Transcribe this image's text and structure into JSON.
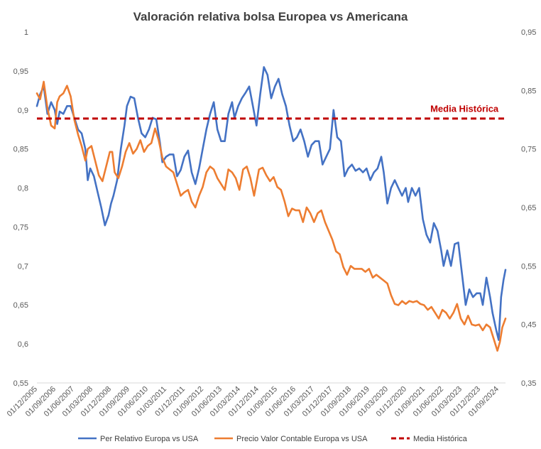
{
  "chart_data": {
    "type": "line",
    "title": "Valoración relativa bolsa Europea vs Americana",
    "x_tick_labels": [
      "01/12/2005",
      "01/09/2006",
      "01/06/2007",
      "01/03/2008",
      "01/12/2008",
      "01/09/2009",
      "01/06/2010",
      "01/03/2011",
      "01/12/2011",
      "01/09/2012",
      "01/06/2013",
      "01/03/2014",
      "01/12/2014",
      "01/09/2015",
      "01/06/2016",
      "01/03/2017",
      "01/12/2017",
      "01/09/2018",
      "01/06/2019",
      "01/03/2020",
      "01/12/2020",
      "01/09/2021",
      "01/06/2022",
      "01/03/2023",
      "01/12/2023",
      "01/09/2024"
    ],
    "x_range": [
      2005.92,
      2025.08
    ],
    "y_left": {
      "min": 0.55,
      "max": 1.0,
      "ticks": [
        "0,55",
        "0,6",
        "0,65",
        "0,7",
        "0,75",
        "0,8",
        "0,85",
        "0,9",
        "0,95",
        "1"
      ]
    },
    "y_right": {
      "min": 0.35,
      "max": 0.95,
      "ticks": [
        "0,35",
        "0,45",
        "0,55",
        "0,65",
        "0,75",
        "0,85",
        "0,95"
      ]
    },
    "series": [
      {
        "name": "Per Relativo Europa vs USA",
        "axis": "left",
        "color": "#4472c4",
        "points": [
          [
            2005.92,
            0.905
          ],
          [
            2006.05,
            0.92
          ],
          [
            2006.2,
            0.93
          ],
          [
            2006.35,
            0.895
          ],
          [
            2006.5,
            0.91
          ],
          [
            2006.65,
            0.9
          ],
          [
            2006.75,
            0.882
          ],
          [
            2006.85,
            0.898
          ],
          [
            2007.0,
            0.895
          ],
          [
            2007.15,
            0.905
          ],
          [
            2007.3,
            0.905
          ],
          [
            2007.45,
            0.89
          ],
          [
            2007.6,
            0.875
          ],
          [
            2007.75,
            0.87
          ],
          [
            2007.9,
            0.85
          ],
          [
            2008.0,
            0.81
          ],
          [
            2008.1,
            0.825
          ],
          [
            2008.25,
            0.815
          ],
          [
            2008.4,
            0.795
          ],
          [
            2008.55,
            0.775
          ],
          [
            2008.7,
            0.752
          ],
          [
            2008.85,
            0.765
          ],
          [
            2008.95,
            0.78
          ],
          [
            2009.05,
            0.79
          ],
          [
            2009.2,
            0.81
          ],
          [
            2009.35,
            0.85
          ],
          [
            2009.5,
            0.88
          ],
          [
            2009.6,
            0.905
          ],
          [
            2009.75,
            0.917
          ],
          [
            2009.9,
            0.915
          ],
          [
            2010.05,
            0.89
          ],
          [
            2010.2,
            0.87
          ],
          [
            2010.35,
            0.865
          ],
          [
            2010.5,
            0.875
          ],
          [
            2010.65,
            0.89
          ],
          [
            2010.8,
            0.888
          ],
          [
            2010.95,
            0.858
          ],
          [
            2011.05,
            0.833
          ],
          [
            2011.2,
            0.84
          ],
          [
            2011.35,
            0.843
          ],
          [
            2011.5,
            0.843
          ],
          [
            2011.65,
            0.815
          ],
          [
            2011.8,
            0.823
          ],
          [
            2011.95,
            0.84
          ],
          [
            2012.1,
            0.848
          ],
          [
            2012.25,
            0.82
          ],
          [
            2012.4,
            0.805
          ],
          [
            2012.55,
            0.825
          ],
          [
            2012.7,
            0.85
          ],
          [
            2012.85,
            0.875
          ],
          [
            2013.0,
            0.895
          ],
          [
            2013.15,
            0.91
          ],
          [
            2013.3,
            0.875
          ],
          [
            2013.45,
            0.86
          ],
          [
            2013.6,
            0.86
          ],
          [
            2013.75,
            0.895
          ],
          [
            2013.9,
            0.91
          ],
          [
            2014.0,
            0.89
          ],
          [
            2014.15,
            0.905
          ],
          [
            2014.3,
            0.915
          ],
          [
            2014.45,
            0.922
          ],
          [
            2014.6,
            0.93
          ],
          [
            2014.75,
            0.905
          ],
          [
            2014.9,
            0.88
          ],
          [
            2015.05,
            0.92
          ],
          [
            2015.2,
            0.955
          ],
          [
            2015.35,
            0.945
          ],
          [
            2015.5,
            0.915
          ],
          [
            2015.65,
            0.93
          ],
          [
            2015.8,
            0.94
          ],
          [
            2015.95,
            0.92
          ],
          [
            2016.1,
            0.905
          ],
          [
            2016.25,
            0.88
          ],
          [
            2016.4,
            0.86
          ],
          [
            2016.55,
            0.865
          ],
          [
            2016.7,
            0.875
          ],
          [
            2016.85,
            0.86
          ],
          [
            2017.0,
            0.84
          ],
          [
            2017.15,
            0.855
          ],
          [
            2017.3,
            0.86
          ],
          [
            2017.45,
            0.86
          ],
          [
            2017.6,
            0.83
          ],
          [
            2017.75,
            0.84
          ],
          [
            2017.9,
            0.85
          ],
          [
            2018.05,
            0.9
          ],
          [
            2018.2,
            0.865
          ],
          [
            2018.35,
            0.86
          ],
          [
            2018.5,
            0.815
          ],
          [
            2018.65,
            0.825
          ],
          [
            2018.8,
            0.83
          ],
          [
            2018.95,
            0.822
          ],
          [
            2019.1,
            0.825
          ],
          [
            2019.25,
            0.82
          ],
          [
            2019.4,
            0.825
          ],
          [
            2019.55,
            0.81
          ],
          [
            2019.7,
            0.82
          ],
          [
            2019.85,
            0.825
          ],
          [
            2020.0,
            0.84
          ],
          [
            2020.1,
            0.82
          ],
          [
            2020.25,
            0.78
          ],
          [
            2020.4,
            0.8
          ],
          [
            2020.55,
            0.81
          ],
          [
            2020.7,
            0.8
          ],
          [
            2020.85,
            0.79
          ],
          [
            2021.0,
            0.8
          ],
          [
            2021.1,
            0.782
          ],
          [
            2021.25,
            0.8
          ],
          [
            2021.4,
            0.79
          ],
          [
            2021.55,
            0.8
          ],
          [
            2021.7,
            0.76
          ],
          [
            2021.85,
            0.74
          ],
          [
            2022.0,
            0.73
          ],
          [
            2022.15,
            0.755
          ],
          [
            2022.3,
            0.745
          ],
          [
            2022.45,
            0.72
          ],
          [
            2022.55,
            0.7
          ],
          [
            2022.7,
            0.72
          ],
          [
            2022.85,
            0.7
          ],
          [
            2023.0,
            0.728
          ],
          [
            2023.15,
            0.73
          ],
          [
            2023.3,
            0.69
          ],
          [
            2023.45,
            0.65
          ],
          [
            2023.6,
            0.67
          ],
          [
            2023.75,
            0.66
          ],
          [
            2023.9,
            0.665
          ],
          [
            2024.05,
            0.665
          ],
          [
            2024.15,
            0.65
          ],
          [
            2024.3,
            0.685
          ],
          [
            2024.45,
            0.66
          ],
          [
            2024.55,
            0.64
          ],
          [
            2024.7,
            0.618
          ],
          [
            2024.8,
            0.605
          ],
          [
            2024.9,
            0.66
          ],
          [
            2025.0,
            0.682
          ],
          [
            2025.08,
            0.695
          ]
        ]
      },
      {
        "name": "Precio Valor Contable Europa vs USA",
        "axis": "right",
        "color": "#ed7d31",
        "points": [
          [
            2005.92,
            0.845
          ],
          [
            2006.05,
            0.835
          ],
          [
            2006.2,
            0.865
          ],
          [
            2006.35,
            0.82
          ],
          [
            2006.5,
            0.79
          ],
          [
            2006.65,
            0.785
          ],
          [
            2006.75,
            0.83
          ],
          [
            2006.85,
            0.84
          ],
          [
            2007.0,
            0.845
          ],
          [
            2007.15,
            0.858
          ],
          [
            2007.3,
            0.84
          ],
          [
            2007.45,
            0.8
          ],
          [
            2007.6,
            0.775
          ],
          [
            2007.75,
            0.755
          ],
          [
            2007.9,
            0.73
          ],
          [
            2008.0,
            0.75
          ],
          [
            2008.15,
            0.755
          ],
          [
            2008.3,
            0.73
          ],
          [
            2008.45,
            0.705
          ],
          [
            2008.6,
            0.695
          ],
          [
            2008.75,
            0.72
          ],
          [
            2008.9,
            0.745
          ],
          [
            2009.0,
            0.745
          ],
          [
            2009.1,
            0.71
          ],
          [
            2009.25,
            0.7
          ],
          [
            2009.4,
            0.72
          ],
          [
            2009.55,
            0.745
          ],
          [
            2009.7,
            0.76
          ],
          [
            2009.85,
            0.742
          ],
          [
            2010.0,
            0.75
          ],
          [
            2010.15,
            0.765
          ],
          [
            2010.3,
            0.745
          ],
          [
            2010.45,
            0.755
          ],
          [
            2010.6,
            0.76
          ],
          [
            2010.75,
            0.785
          ],
          [
            2010.9,
            0.765
          ],
          [
            2011.05,
            0.735
          ],
          [
            2011.2,
            0.72
          ],
          [
            2011.35,
            0.715
          ],
          [
            2011.5,
            0.71
          ],
          [
            2011.65,
            0.69
          ],
          [
            2011.8,
            0.67
          ],
          [
            2011.95,
            0.676
          ],
          [
            2012.1,
            0.68
          ],
          [
            2012.25,
            0.66
          ],
          [
            2012.4,
            0.65
          ],
          [
            2012.55,
            0.67
          ],
          [
            2012.7,
            0.685
          ],
          [
            2012.85,
            0.71
          ],
          [
            2013.0,
            0.72
          ],
          [
            2013.15,
            0.715
          ],
          [
            2013.3,
            0.7
          ],
          [
            2013.45,
            0.69
          ],
          [
            2013.6,
            0.68
          ],
          [
            2013.75,
            0.715
          ],
          [
            2013.9,
            0.71
          ],
          [
            2014.05,
            0.7
          ],
          [
            2014.2,
            0.68
          ],
          [
            2014.35,
            0.715
          ],
          [
            2014.5,
            0.72
          ],
          [
            2014.65,
            0.7
          ],
          [
            2014.8,
            0.67
          ],
          [
            2015.0,
            0.715
          ],
          [
            2015.15,
            0.718
          ],
          [
            2015.3,
            0.705
          ],
          [
            2015.45,
            0.695
          ],
          [
            2015.6,
            0.702
          ],
          [
            2015.75,
            0.685
          ],
          [
            2015.9,
            0.68
          ],
          [
            2016.05,
            0.66
          ],
          [
            2016.2,
            0.635
          ],
          [
            2016.35,
            0.648
          ],
          [
            2016.5,
            0.645
          ],
          [
            2016.65,
            0.645
          ],
          [
            2016.8,
            0.625
          ],
          [
            2016.95,
            0.65
          ],
          [
            2017.1,
            0.64
          ],
          [
            2017.25,
            0.625
          ],
          [
            2017.4,
            0.64
          ],
          [
            2017.55,
            0.645
          ],
          [
            2017.7,
            0.625
          ],
          [
            2017.85,
            0.61
          ],
          [
            2018.0,
            0.595
          ],
          [
            2018.15,
            0.575
          ],
          [
            2018.3,
            0.57
          ],
          [
            2018.45,
            0.548
          ],
          [
            2018.6,
            0.535
          ],
          [
            2018.75,
            0.55
          ],
          [
            2018.9,
            0.545
          ],
          [
            2019.05,
            0.545
          ],
          [
            2019.2,
            0.545
          ],
          [
            2019.35,
            0.54
          ],
          [
            2019.5,
            0.545
          ],
          [
            2019.65,
            0.53
          ],
          [
            2019.8,
            0.535
          ],
          [
            2019.95,
            0.53
          ],
          [
            2020.1,
            0.525
          ],
          [
            2020.25,
            0.52
          ],
          [
            2020.4,
            0.5
          ],
          [
            2020.55,
            0.485
          ],
          [
            2020.7,
            0.483
          ],
          [
            2020.85,
            0.49
          ],
          [
            2021.0,
            0.485
          ],
          [
            2021.15,
            0.49
          ],
          [
            2021.3,
            0.488
          ],
          [
            2021.45,
            0.49
          ],
          [
            2021.6,
            0.485
          ],
          [
            2021.75,
            0.483
          ],
          [
            2021.9,
            0.475
          ],
          [
            2022.05,
            0.48
          ],
          [
            2022.2,
            0.47
          ],
          [
            2022.35,
            0.46
          ],
          [
            2022.5,
            0.475
          ],
          [
            2022.65,
            0.47
          ],
          [
            2022.8,
            0.46
          ],
          [
            2022.95,
            0.47
          ],
          [
            2023.1,
            0.485
          ],
          [
            2023.25,
            0.46
          ],
          [
            2023.4,
            0.45
          ],
          [
            2023.55,
            0.465
          ],
          [
            2023.7,
            0.45
          ],
          [
            2023.85,
            0.448
          ],
          [
            2024.0,
            0.45
          ],
          [
            2024.15,
            0.44
          ],
          [
            2024.3,
            0.45
          ],
          [
            2024.45,
            0.445
          ],
          [
            2024.6,
            0.425
          ],
          [
            2024.75,
            0.405
          ],
          [
            2024.85,
            0.42
          ],
          [
            2024.95,
            0.445
          ],
          [
            2025.08,
            0.46
          ]
        ]
      },
      {
        "name": "Media Histórica",
        "axis": "left",
        "color": "#c00000",
        "style": "dashed",
        "value": 0.889
      }
    ],
    "annotations": [
      {
        "text": "Media Histórica",
        "x": 2023.4,
        "y": 0.901,
        "axis": "left"
      }
    ],
    "legend_position": "bottom"
  }
}
